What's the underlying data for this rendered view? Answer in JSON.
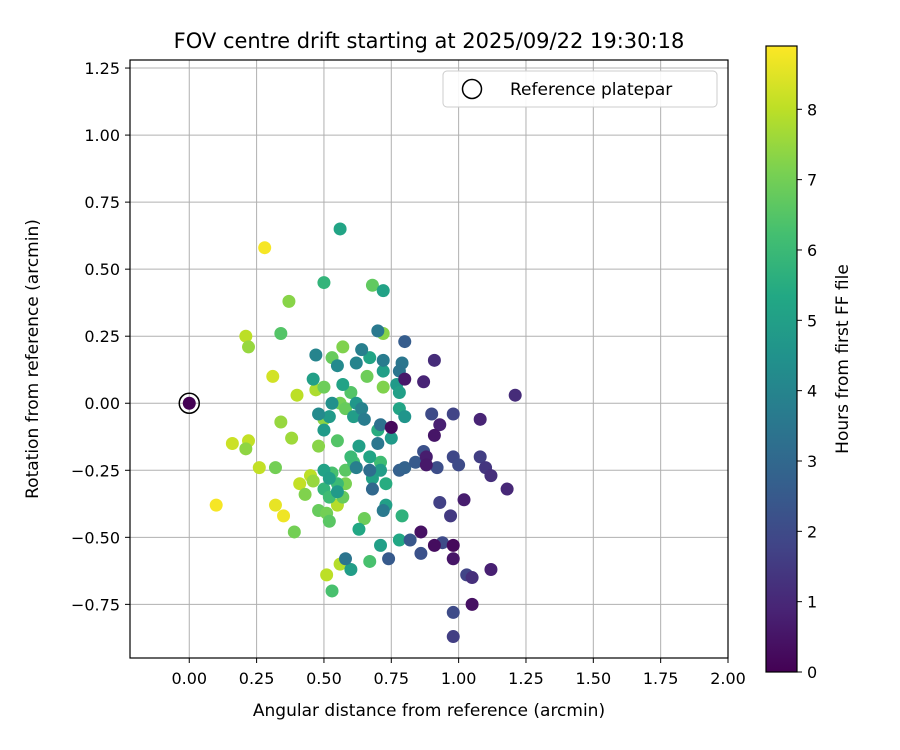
{
  "chart_data": {
    "type": "scatter",
    "title": "FOV centre drift starting at 2025/09/22 19:30:18",
    "xlabel": "Angular distance from reference (arcmin)",
    "ylabel": "Rotation from reference (arcmin)",
    "xlim": [
      -0.22,
      2.0
    ],
    "ylim": [
      -0.95,
      1.28
    ],
    "xticks": [
      0.0,
      0.25,
      0.5,
      0.75,
      1.0,
      1.25,
      1.5,
      1.75,
      2.0
    ],
    "xtick_labels": [
      "0.00",
      "0.25",
      "0.50",
      "0.75",
      "1.00",
      "1.25",
      "1.50",
      "1.75",
      "2.00"
    ],
    "yticks": [
      -0.75,
      -0.5,
      -0.25,
      0.0,
      0.25,
      0.5,
      0.75,
      1.0,
      1.25
    ],
    "ytick_labels": [
      "−0.75",
      "−0.50",
      "−0.25",
      "0.00",
      "0.25",
      "0.50",
      "0.75",
      "1.00",
      "1.25"
    ],
    "grid": true,
    "legend": {
      "position": "top-right",
      "entries": [
        "Reference platepar"
      ]
    },
    "reference_point": {
      "x": 0.0,
      "y": 0.0,
      "label": "Reference platepar"
    },
    "colorbar": {
      "label": "Hours from first FF file",
      "colormap": "viridis",
      "range": [
        0,
        8.9
      ],
      "ticks": [
        0,
        1,
        2,
        3,
        4,
        5,
        6,
        7,
        8
      ],
      "tick_labels": [
        "0",
        "1",
        "2",
        "3",
        "4",
        "5",
        "6",
        "7",
        "8"
      ]
    },
    "series": [
      {
        "name": "FOV centre drift",
        "points": [
          {
            "x": 0.0,
            "y": 0.0,
            "h": 0.0
          },
          {
            "x": 0.28,
            "y": 0.58,
            "h": 8.8
          },
          {
            "x": 0.1,
            "y": -0.38,
            "h": 8.8
          },
          {
            "x": 0.32,
            "y": -0.38,
            "h": 8.6
          },
          {
            "x": 0.35,
            "y": -0.42,
            "h": 8.7
          },
          {
            "x": 0.31,
            "y": 0.1,
            "h": 8.3
          },
          {
            "x": 0.21,
            "y": 0.25,
            "h": 8.0
          },
          {
            "x": 0.16,
            "y": -0.15,
            "h": 8.2
          },
          {
            "x": 0.22,
            "y": -0.14,
            "h": 8.1
          },
          {
            "x": 0.26,
            "y": -0.24,
            "h": 8.1
          },
          {
            "x": 0.4,
            "y": 0.03,
            "h": 8.0
          },
          {
            "x": 0.41,
            "y": -0.3,
            "h": 8.1
          },
          {
            "x": 0.45,
            "y": -0.27,
            "h": 8.0
          },
          {
            "x": 0.51,
            "y": -0.64,
            "h": 8.0
          },
          {
            "x": 0.56,
            "y": -0.6,
            "h": 7.9
          },
          {
            "x": 0.55,
            "y": -0.38,
            "h": 7.9
          },
          {
            "x": 0.47,
            "y": 0.05,
            "h": 7.8
          },
          {
            "x": 0.22,
            "y": 0.21,
            "h": 7.5
          },
          {
            "x": 0.21,
            "y": -0.17,
            "h": 7.4
          },
          {
            "x": 0.37,
            "y": 0.38,
            "h": 7.3
          },
          {
            "x": 0.34,
            "y": 0.26,
            "h": 6.5
          },
          {
            "x": 0.34,
            "y": -0.07,
            "h": 7.5
          },
          {
            "x": 0.38,
            "y": -0.13,
            "h": 7.6
          },
          {
            "x": 0.32,
            "y": -0.24,
            "h": 7.0
          },
          {
            "x": 0.39,
            "y": -0.48,
            "h": 7.0
          },
          {
            "x": 0.43,
            "y": -0.34,
            "h": 7.2
          },
          {
            "x": 0.46,
            "y": -0.29,
            "h": 7.5
          },
          {
            "x": 0.48,
            "y": -0.16,
            "h": 7.3
          },
          {
            "x": 0.5,
            "y": -0.06,
            "h": 7.4
          },
          {
            "x": 0.48,
            "y": -0.4,
            "h": 6.8
          },
          {
            "x": 0.51,
            "y": -0.41,
            "h": 7.0
          },
          {
            "x": 0.52,
            "y": -0.44,
            "h": 6.6
          },
          {
            "x": 0.57,
            "y": -0.35,
            "h": 6.8
          },
          {
            "x": 0.58,
            "y": -0.3,
            "h": 7.1
          },
          {
            "x": 0.65,
            "y": -0.43,
            "h": 6.9
          },
          {
            "x": 0.53,
            "y": -0.7,
            "h": 6.3
          },
          {
            "x": 0.67,
            "y": -0.59,
            "h": 6.3
          },
          {
            "x": 0.5,
            "y": 0.06,
            "h": 6.9
          },
          {
            "x": 0.53,
            "y": 0.17,
            "h": 6.8
          },
          {
            "x": 0.57,
            "y": 0.21,
            "h": 7.2
          },
          {
            "x": 0.68,
            "y": 0.44,
            "h": 6.7
          },
          {
            "x": 0.72,
            "y": 0.26,
            "h": 7.3
          },
          {
            "x": 0.72,
            "y": 0.06,
            "h": 7.2
          },
          {
            "x": 0.66,
            "y": 0.1,
            "h": 6.9
          },
          {
            "x": 0.6,
            "y": 0.04,
            "h": 6.5
          },
          {
            "x": 0.56,
            "y": 0.0,
            "h": 7.0
          },
          {
            "x": 0.58,
            "y": -0.02,
            "h": 6.8
          },
          {
            "x": 0.55,
            "y": -0.14,
            "h": 6.5
          },
          {
            "x": 0.58,
            "y": -0.25,
            "h": 6.6
          },
          {
            "x": 0.61,
            "y": -0.22,
            "h": 6.2
          },
          {
            "x": 0.55,
            "y": -0.3,
            "h": 6.0
          },
          {
            "x": 0.53,
            "y": -0.26,
            "h": 6.3
          },
          {
            "x": 0.6,
            "y": -0.2,
            "h": 6.0
          },
          {
            "x": 0.7,
            "y": -0.1,
            "h": 5.5
          },
          {
            "x": 0.71,
            "y": -0.22,
            "h": 6.1
          },
          {
            "x": 0.73,
            "y": -0.3,
            "h": 5.5
          },
          {
            "x": 0.79,
            "y": -0.42,
            "h": 5.7
          },
          {
            "x": 0.78,
            "y": -0.51,
            "h": 5.3
          },
          {
            "x": 0.5,
            "y": 0.45,
            "h": 5.8
          },
          {
            "x": 0.56,
            "y": 0.65,
            "h": 5.2
          },
          {
            "x": 0.72,
            "y": 0.42,
            "h": 5.1
          },
          {
            "x": 0.5,
            "y": -0.32,
            "h": 5.8
          },
          {
            "x": 0.52,
            "y": -0.35,
            "h": 6.1
          },
          {
            "x": 0.5,
            "y": -0.25,
            "h": 5.1
          },
          {
            "x": 0.52,
            "y": -0.28,
            "h": 5.0
          },
          {
            "x": 0.55,
            "y": -0.33,
            "h": 4.8
          },
          {
            "x": 0.6,
            "y": -0.62,
            "h": 4.9
          },
          {
            "x": 0.63,
            "y": -0.47,
            "h": 5.3
          },
          {
            "x": 0.71,
            "y": -0.53,
            "h": 5.0
          },
          {
            "x": 0.73,
            "y": -0.38,
            "h": 5.0
          },
          {
            "x": 0.52,
            "y": -0.05,
            "h": 4.8
          },
          {
            "x": 0.5,
            "y": -0.1,
            "h": 4.8
          },
          {
            "x": 0.46,
            "y": 0.09,
            "h": 5.0
          },
          {
            "x": 0.57,
            "y": 0.07,
            "h": 5.1
          },
          {
            "x": 0.62,
            "y": 0.0,
            "h": 4.7
          },
          {
            "x": 0.61,
            "y": -0.05,
            "h": 4.9
          },
          {
            "x": 0.63,
            "y": -0.16,
            "h": 5.0
          },
          {
            "x": 0.67,
            "y": -0.2,
            "h": 5.2
          },
          {
            "x": 0.68,
            "y": -0.28,
            "h": 5.1
          },
          {
            "x": 0.71,
            "y": -0.25,
            "h": 4.9
          },
          {
            "x": 0.72,
            "y": 0.12,
            "h": 5.0
          },
          {
            "x": 0.67,
            "y": 0.17,
            "h": 5.2
          },
          {
            "x": 0.77,
            "y": 0.07,
            "h": 4.8
          },
          {
            "x": 0.78,
            "y": 0.04,
            "h": 5.0
          },
          {
            "x": 0.78,
            "y": -0.02,
            "h": 5.2
          },
          {
            "x": 0.8,
            "y": -0.05,
            "h": 4.6
          },
          {
            "x": 0.75,
            "y": -0.13,
            "h": 4.8
          },
          {
            "x": 0.53,
            "y": 0.0,
            "h": 4.4
          },
          {
            "x": 0.48,
            "y": -0.04,
            "h": 4.2
          },
          {
            "x": 0.47,
            "y": 0.18,
            "h": 4.0
          },
          {
            "x": 0.55,
            "y": 0.14,
            "h": 4.2
          },
          {
            "x": 0.62,
            "y": 0.15,
            "h": 4.0
          },
          {
            "x": 0.64,
            "y": 0.2,
            "h": 3.8
          },
          {
            "x": 0.7,
            "y": 0.27,
            "h": 3.6
          },
          {
            "x": 0.72,
            "y": 0.16,
            "h": 3.7
          },
          {
            "x": 0.79,
            "y": 0.15,
            "h": 3.5
          },
          {
            "x": 0.78,
            "y": 0.12,
            "h": 3.4
          },
          {
            "x": 0.64,
            "y": -0.02,
            "h": 3.9
          },
          {
            "x": 0.65,
            "y": -0.06,
            "h": 3.7
          },
          {
            "x": 0.71,
            "y": -0.08,
            "h": 3.3
          },
          {
            "x": 0.7,
            "y": -0.15,
            "h": 3.5
          },
          {
            "x": 0.62,
            "y": -0.24,
            "h": 3.8
          },
          {
            "x": 0.67,
            "y": -0.25,
            "h": 3.2
          },
          {
            "x": 0.68,
            "y": -0.32,
            "h": 3.0
          },
          {
            "x": 0.58,
            "y": -0.58,
            "h": 3.4
          },
          {
            "x": 0.72,
            "y": -0.4,
            "h": 3.6
          },
          {
            "x": 0.74,
            "y": -0.58,
            "h": 2.5
          },
          {
            "x": 0.8,
            "y": 0.23,
            "h": 2.6
          },
          {
            "x": 0.78,
            "y": -0.25,
            "h": 2.7
          },
          {
            "x": 0.8,
            "y": -0.24,
            "h": 2.8
          },
          {
            "x": 0.84,
            "y": -0.22,
            "h": 2.5
          },
          {
            "x": 0.87,
            "y": -0.18,
            "h": 2.2
          },
          {
            "x": 0.86,
            "y": -0.56,
            "h": 2.2
          },
          {
            "x": 0.82,
            "y": -0.51,
            "h": 2.4
          },
          {
            "x": 0.9,
            "y": -0.04,
            "h": 2.0
          },
          {
            "x": 0.92,
            "y": -0.24,
            "h": 2.1
          },
          {
            "x": 0.94,
            "y": -0.52,
            "h": 2.0
          },
          {
            "x": 0.93,
            "y": -0.37,
            "h": 1.7
          },
          {
            "x": 0.98,
            "y": -0.04,
            "h": 1.8
          },
          {
            "x": 0.98,
            "y": -0.2,
            "h": 1.9
          },
          {
            "x": 1.0,
            "y": -0.23,
            "h": 2.0
          },
          {
            "x": 0.98,
            "y": -0.78,
            "h": 2.0
          },
          {
            "x": 0.98,
            "y": -0.87,
            "h": 1.6
          },
          {
            "x": 0.97,
            "y": -0.42,
            "h": 1.5
          },
          {
            "x": 1.03,
            "y": -0.64,
            "h": 1.8
          },
          {
            "x": 1.08,
            "y": -0.2,
            "h": 1.6
          },
          {
            "x": 1.1,
            "y": -0.24,
            "h": 1.4
          },
          {
            "x": 1.12,
            "y": -0.27,
            "h": 1.2
          },
          {
            "x": 1.18,
            "y": -0.32,
            "h": 1.0
          },
          {
            "x": 1.21,
            "y": 0.03,
            "h": 1.1
          },
          {
            "x": 1.08,
            "y": -0.06,
            "h": 0.9
          },
          {
            "x": 1.02,
            "y": -0.36,
            "h": 0.7
          },
          {
            "x": 1.05,
            "y": -0.65,
            "h": 1.2
          },
          {
            "x": 1.12,
            "y": -0.62,
            "h": 0.8
          },
          {
            "x": 1.05,
            "y": -0.75,
            "h": 0.4
          },
          {
            "x": 0.91,
            "y": 0.16,
            "h": 1.1
          },
          {
            "x": 0.87,
            "y": 0.08,
            "h": 0.9
          },
          {
            "x": 0.8,
            "y": 0.09,
            "h": 0.6
          },
          {
            "x": 0.93,
            "y": -0.08,
            "h": 0.8
          },
          {
            "x": 0.91,
            "y": -0.12,
            "h": 0.5
          },
          {
            "x": 0.88,
            "y": -0.2,
            "h": 0.7
          },
          {
            "x": 0.88,
            "y": -0.23,
            "h": 0.6
          },
          {
            "x": 0.91,
            "y": -0.53,
            "h": 0.3
          },
          {
            "x": 0.98,
            "y": -0.53,
            "h": 0.2
          },
          {
            "x": 0.98,
            "y": -0.58,
            "h": 0.5
          },
          {
            "x": 0.86,
            "y": -0.48,
            "h": 0.4
          },
          {
            "x": 0.75,
            "y": -0.09,
            "h": 0.2
          }
        ]
      }
    ]
  }
}
